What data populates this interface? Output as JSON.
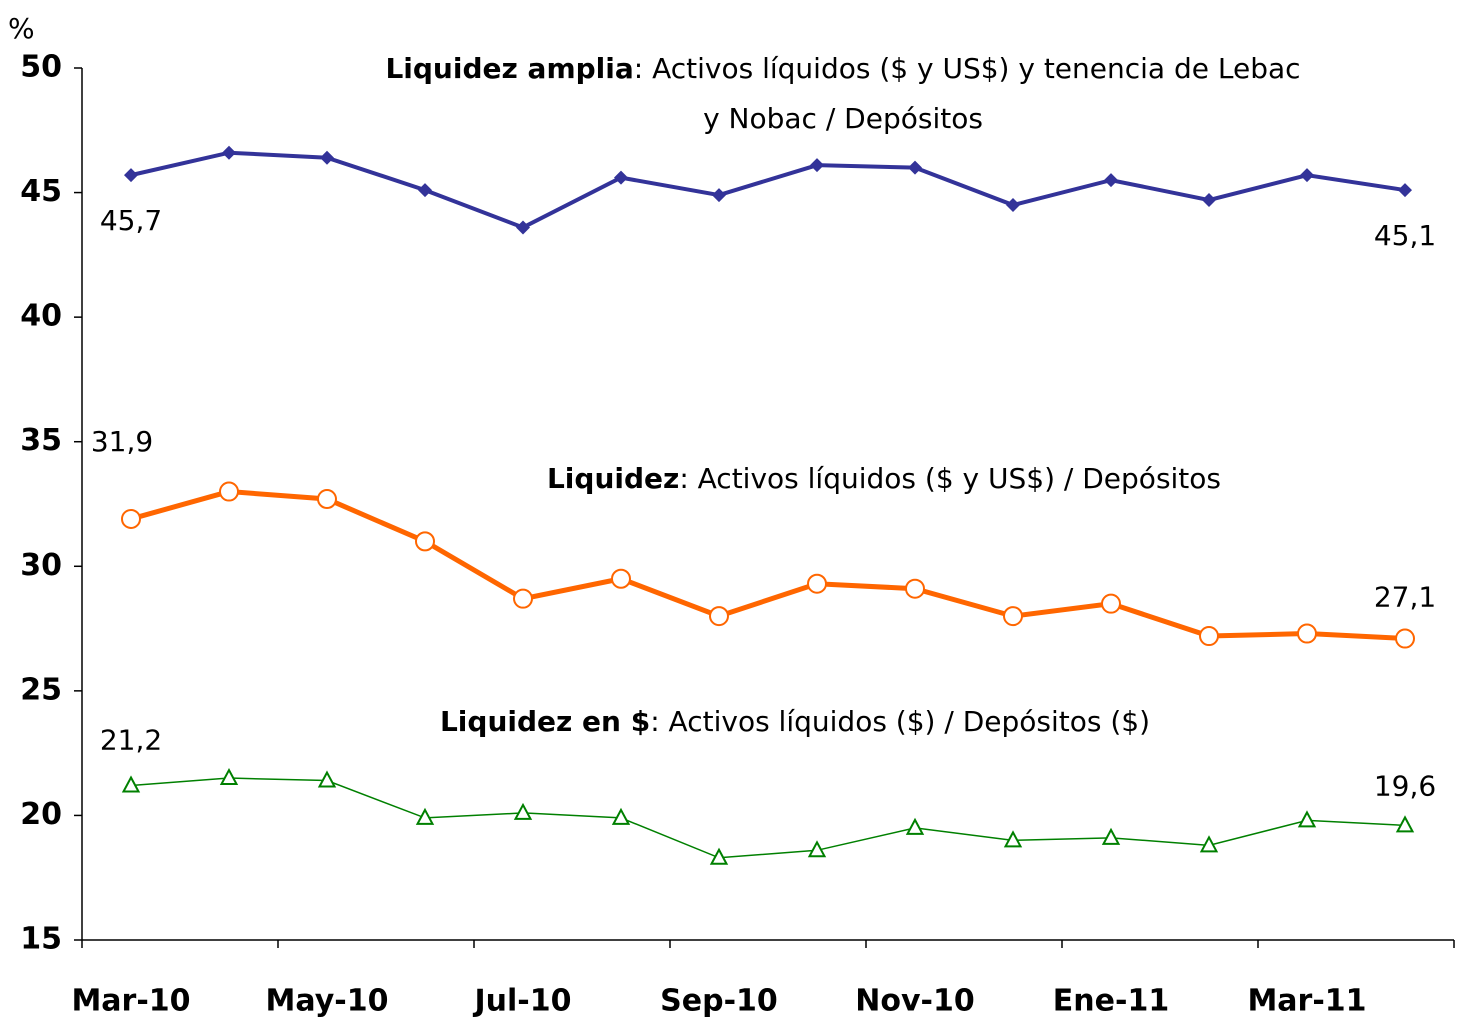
{
  "chart_data": {
    "type": "line",
    "y_label": "%",
    "categories": [
      "Mar-10",
      null,
      "May-10",
      null,
      "Jul-10",
      null,
      "Sep-10",
      null,
      "Nov-10",
      null,
      "Ene-11",
      null,
      "Mar-11",
      null
    ],
    "ylim": [
      15,
      50
    ],
    "yticks": [
      15,
      20,
      25,
      30,
      35,
      40,
      45,
      50
    ],
    "series": [
      {
        "name": "Liquidez amplia",
        "description": [
          ": Activos líquidos ($ y US$) y tenencia de Lebac",
          "y Nobac / Depósitos"
        ],
        "color": "#333399",
        "marker": "diamond",
        "values": [
          45.7,
          46.6,
          46.4,
          45.1,
          43.6,
          45.6,
          44.9,
          46.1,
          46.0,
          44.5,
          45.5,
          44.7,
          45.7,
          45.1
        ],
        "value_labels": [
          "45,7",
          null,
          null,
          null,
          null,
          null,
          null,
          null,
          null,
          null,
          null,
          null,
          null,
          "45,1"
        ]
      },
      {
        "name": "Liquidez",
        "description": [
          ": Activos líquidos ($ y US$) / Depósitos"
        ],
        "color": "#ff6600",
        "marker": "circle",
        "values": [
          31.9,
          33.0,
          32.7,
          31.0,
          28.7,
          29.5,
          28.0,
          29.3,
          29.1,
          28.0,
          28.5,
          27.2,
          27.3,
          27.1
        ],
        "value_labels": [
          "31,9",
          null,
          null,
          null,
          null,
          null,
          null,
          null,
          null,
          null,
          null,
          null,
          null,
          "27,1"
        ]
      },
      {
        "name": "Liquidez en $",
        "description": [
          ": Activos líquidos ($) / Depósitos ($)"
        ],
        "color": "#008000",
        "marker": "triangle",
        "values": [
          21.2,
          21.5,
          21.4,
          19.9,
          20.1,
          19.9,
          18.3,
          18.6,
          19.5,
          19.0,
          19.1,
          18.8,
          19.8,
          19.6
        ],
        "value_labels": [
          "21,2",
          null,
          null,
          null,
          null,
          null,
          null,
          null,
          null,
          null,
          null,
          null,
          null,
          "19,6"
        ]
      }
    ]
  }
}
